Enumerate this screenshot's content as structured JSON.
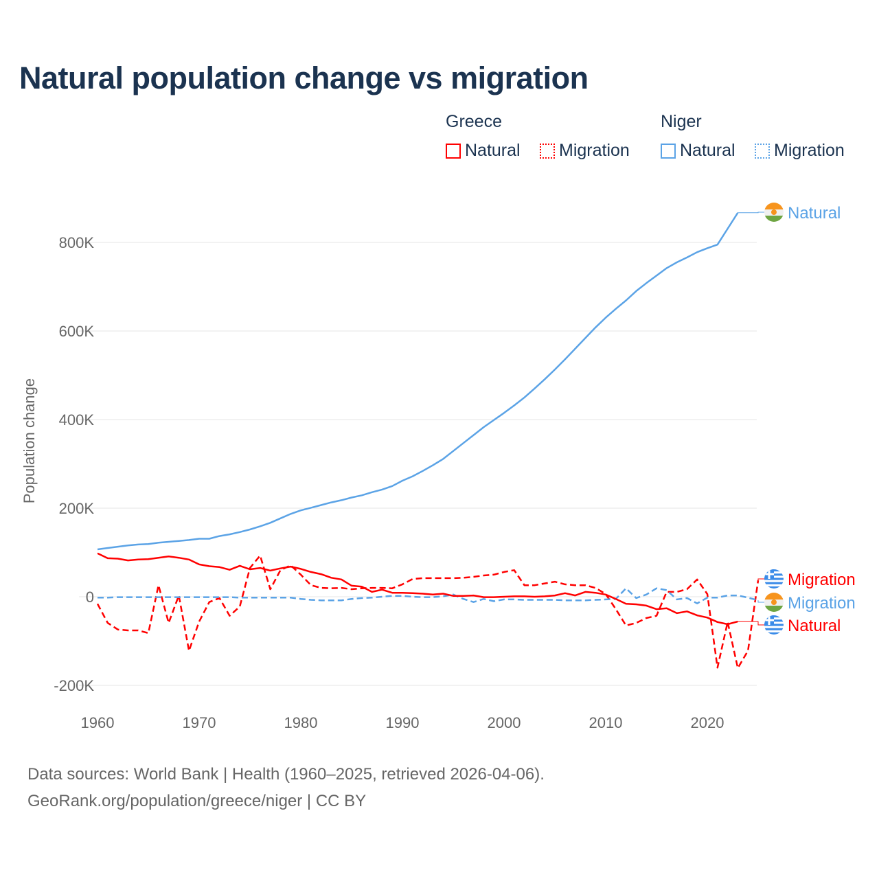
{
  "title": "Natural population change vs migration",
  "legend": {
    "groups": [
      {
        "name": "Greece",
        "items": [
          {
            "label": "Natural",
            "style": "solid",
            "color": "#ff0000"
          },
          {
            "label": "Migration",
            "style": "dotted",
            "color": "#ff0000"
          }
        ]
      },
      {
        "name": "Niger",
        "items": [
          {
            "label": "Natural",
            "style": "solid",
            "color": "#5ba3e6"
          },
          {
            "label": "Migration",
            "style": "dotted",
            "color": "#5ba3e6"
          }
        ]
      }
    ]
  },
  "footer": {
    "line1": "Data sources: World Bank | Health (1960–2025, retrieved 2026-04-06).",
    "line2": "GeoRank.org/population/greece/niger | CC BY"
  },
  "chart_data": {
    "type": "line",
    "title": "Natural population change vs migration",
    "xlabel": "",
    "ylabel": "Population change",
    "xlim": [
      1960,
      2025
    ],
    "ylim": [
      -200000,
      900000
    ],
    "x_ticks": [
      1960,
      1970,
      1980,
      1990,
      2000,
      2010,
      2020
    ],
    "x_tick_labels": [
      "1960",
      "1970",
      "1980",
      "1990",
      "2000",
      "2010",
      "2020"
    ],
    "y_ticks": [
      -200000,
      0,
      200000,
      400000,
      600000,
      800000
    ],
    "y_tick_labels": [
      "-200K",
      "0",
      "200K",
      "400K",
      "600K",
      "800K"
    ],
    "grid": true,
    "legend_position": "top-right",
    "series": [
      {
        "name": "Niger Natural",
        "end_label": "Natural",
        "country": "Niger",
        "color": "#5ba3e6",
        "dash": false,
        "start_year": 1960,
        "values": [
          107000,
          110000,
          113000,
          116000,
          118000,
          119000,
          122000,
          124000,
          126000,
          128000,
          131000,
          131000,
          137000,
          141000,
          146000,
          152000,
          159000,
          167000,
          177000,
          187000,
          195000,
          201000,
          207000,
          213000,
          218000,
          224000,
          229000,
          236000,
          242000,
          250000,
          262000,
          272000,
          284000,
          297000,
          311000,
          329000,
          347000,
          365000,
          383000,
          399000,
          415000,
          432000,
          450000,
          470000,
          491000,
          513000,
          536000,
          560000,
          584000,
          608000,
          630000,
          650000,
          669000,
          690000,
          708000,
          725000,
          742000,
          755000,
          766000,
          778000,
          787000,
          795000,
          831000,
          867000
        ]
      },
      {
        "name": "Greece Migration",
        "end_label": "Migration",
        "country": "Greece",
        "color": "#ff0000",
        "dash": true,
        "start_year": 1960,
        "values": [
          -16000,
          -59000,
          -74000,
          -76000,
          -76000,
          -82000,
          26000,
          -59000,
          3000,
          -122000,
          -56000,
          -12000,
          -3000,
          -43000,
          -22000,
          65000,
          93000,
          17000,
          60000,
          71000,
          50000,
          26000,
          20000,
          19000,
          20000,
          17000,
          19000,
          20000,
          20000,
          19000,
          28000,
          40000,
          42000,
          42000,
          42000,
          42000,
          43000,
          45000,
          48000,
          50000,
          56000,
          60000,
          26000,
          26000,
          30000,
          34000,
          28000,
          26000,
          26000,
          20000,
          6000,
          -28000,
          -65000,
          -59000,
          -48000,
          -43000,
          11000,
          11000,
          17000,
          39000,
          6000,
          -160000,
          -57000,
          -161000,
          -122000,
          37000
        ]
      },
      {
        "name": "Niger Migration",
        "end_label": "Migration",
        "country": "Niger",
        "color": "#5ba3e6",
        "dash": true,
        "start_year": 1960,
        "values": [
          -2000,
          -2000,
          -1000,
          -1000,
          -1000,
          -1000,
          -1000,
          -1000,
          -1000,
          -1000,
          -1000,
          -1000,
          -1000,
          -1000,
          -2000,
          -2000,
          -2000,
          -2000,
          -2000,
          -2000,
          -5000,
          -7000,
          -8000,
          -8000,
          -8000,
          -5000,
          -3000,
          -2000,
          0,
          2000,
          2000,
          0,
          -1000,
          -1000,
          1000,
          5000,
          -5000,
          -12000,
          -5000,
          -10000,
          -6000,
          -6000,
          -7000,
          -7000,
          -7000,
          -7000,
          -8000,
          -8000,
          -8000,
          -7000,
          -6000,
          -5000,
          19000,
          -3000,
          5000,
          19000,
          15000,
          -6000,
          -3000,
          -15000,
          -2000,
          -2000,
          3000,
          3000,
          -2000,
          -8000
        ]
      },
      {
        "name": "Greece Natural",
        "end_label": "Natural",
        "country": "Greece",
        "color": "#ff0000",
        "dash": false,
        "start_year": 1960,
        "values": [
          98000,
          87000,
          86000,
          82000,
          84000,
          85000,
          88000,
          91000,
          88000,
          84000,
          73000,
          69000,
          67000,
          61000,
          70000,
          62000,
          65000,
          59000,
          64000,
          68000,
          63000,
          56000,
          51000,
          43000,
          39000,
          25000,
          23000,
          11000,
          16000,
          9000,
          9000,
          8000,
          7000,
          5000,
          7000,
          2000,
          2000,
          3000,
          -1000,
          -1000,
          0,
          1000,
          1000,
          0,
          1000,
          3000,
          8000,
          3000,
          11000,
          9000,
          5000,
          -5000,
          -16000,
          -17000,
          -20000,
          -28000,
          -26000,
          -37000,
          -33000,
          -42000,
          -47000,
          -57000,
          -62000,
          -56000
        ]
      }
    ]
  }
}
